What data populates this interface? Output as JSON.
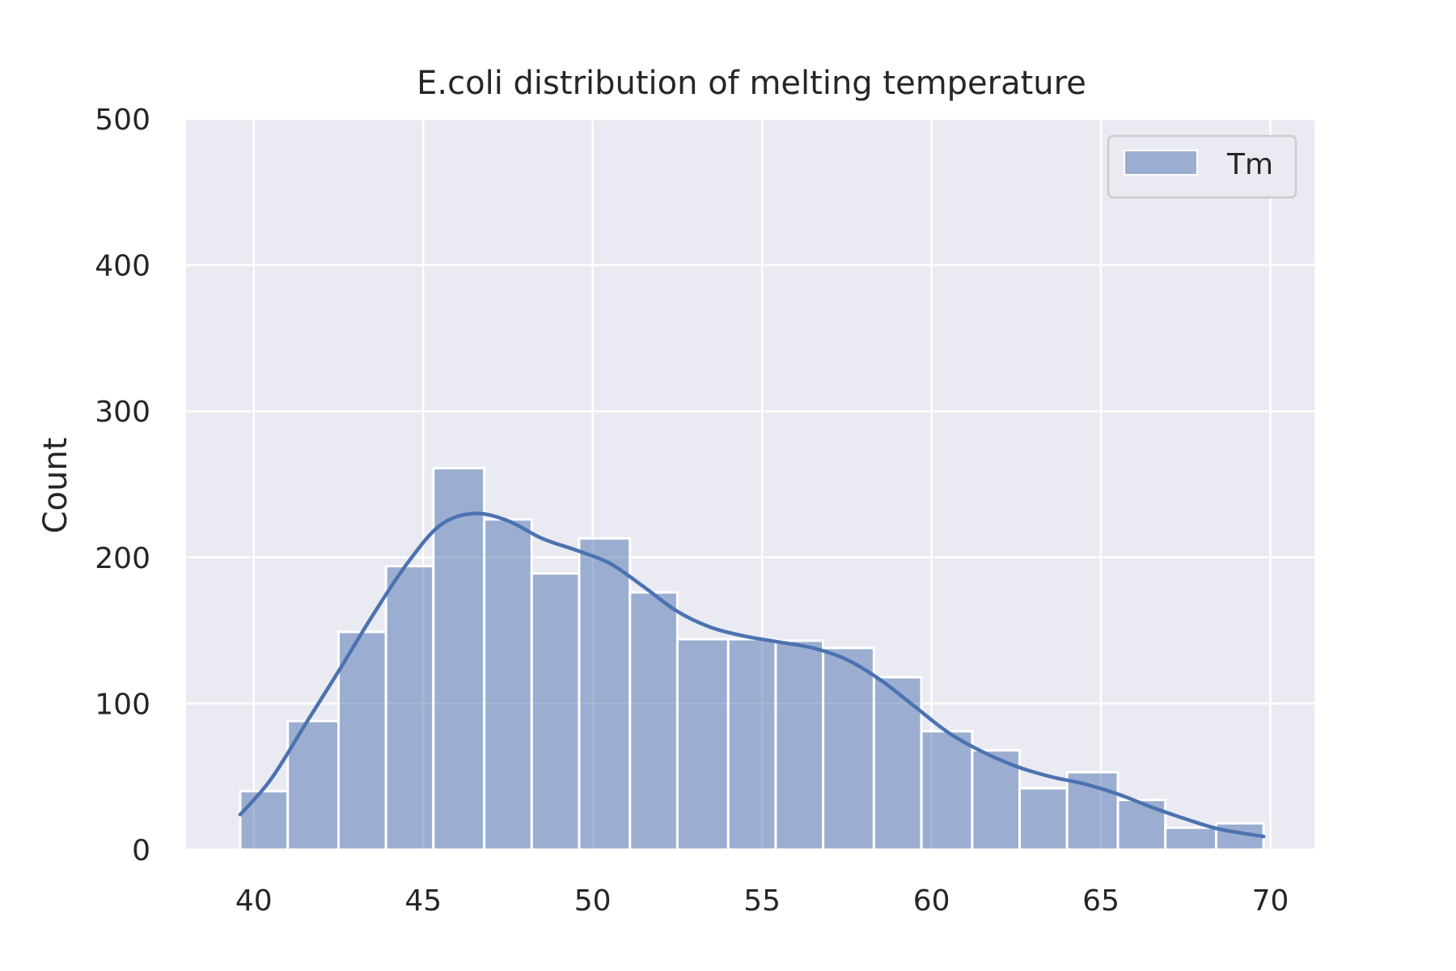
{
  "chart_data": {
    "type": "bar",
    "title": "E.coli distribution of melting temperature",
    "xlabel": "",
    "ylabel": "Count",
    "xlim": [
      38,
      71.3
    ],
    "ylim": [
      0,
      500
    ],
    "xticks": [
      40,
      45,
      50,
      55,
      60,
      65,
      70
    ],
    "yticks": [
      0,
      100,
      200,
      300,
      400,
      500
    ],
    "grid": true,
    "legend_position": "top-right",
    "colors": {
      "plot_background": "#EAEAF2",
      "grid": "#FFFFFF",
      "bar_fill": "#4C72B0",
      "bar_fill_opacity": 0.5,
      "bar_edge": "#FFFFFF",
      "kde_line": "#4C72B0"
    },
    "series": [
      {
        "name": "Tm",
        "type": "histogram",
        "bins": [
          {
            "x0": 39.6,
            "x1": 41.0,
            "count": 40
          },
          {
            "x0": 41.0,
            "x1": 42.5,
            "count": 88
          },
          {
            "x0": 42.5,
            "x1": 43.9,
            "count": 149
          },
          {
            "x0": 43.9,
            "x1": 45.3,
            "count": 194
          },
          {
            "x0": 45.3,
            "x1": 46.8,
            "count": 261
          },
          {
            "x0": 46.8,
            "x1": 48.2,
            "count": 226
          },
          {
            "x0": 48.2,
            "x1": 49.6,
            "count": 189
          },
          {
            "x0": 49.6,
            "x1": 51.1,
            "count": 213
          },
          {
            "x0": 51.1,
            "x1": 52.5,
            "count": 176
          },
          {
            "x0": 52.5,
            "x1": 54.0,
            "count": 144
          },
          {
            "x0": 54.0,
            "x1": 55.4,
            "count": 144
          },
          {
            "x0": 55.4,
            "x1": 56.8,
            "count": 143
          },
          {
            "x0": 56.8,
            "x1": 58.3,
            "count": 138
          },
          {
            "x0": 58.3,
            "x1": 59.7,
            "count": 118
          },
          {
            "x0": 59.7,
            "x1": 61.2,
            "count": 81
          },
          {
            "x0": 61.2,
            "x1": 62.6,
            "count": 68
          },
          {
            "x0": 62.6,
            "x1": 64.0,
            "count": 42
          },
          {
            "x0": 64.0,
            "x1": 65.5,
            "count": 53
          },
          {
            "x0": 65.5,
            "x1": 66.9,
            "count": 34
          },
          {
            "x0": 66.9,
            "x1": 68.4,
            "count": 15
          },
          {
            "x0": 68.4,
            "x1": 69.8,
            "count": 18
          }
        ]
      }
    ],
    "kde": {
      "x": [
        39.6,
        40.5,
        41.5,
        42.5,
        43.5,
        44.5,
        45.5,
        46.5,
        47.5,
        48.5,
        49.5,
        50.5,
        51.5,
        52.5,
        53.5,
        54.5,
        55.5,
        56.5,
        57.5,
        58.5,
        59.5,
        60.5,
        61.5,
        62.5,
        63.5,
        64.5,
        65.5,
        66.5,
        67.5,
        68.5,
        69.8
      ],
      "y": [
        24,
        48,
        85,
        122,
        160,
        195,
        222,
        230,
        225,
        213,
        205,
        196,
        180,
        163,
        152,
        146,
        142,
        138,
        130,
        116,
        98,
        80,
        67,
        57,
        50,
        45,
        38,
        29,
        21,
        14,
        9
      ]
    },
    "legend": [
      {
        "label": "Tm"
      }
    ]
  }
}
